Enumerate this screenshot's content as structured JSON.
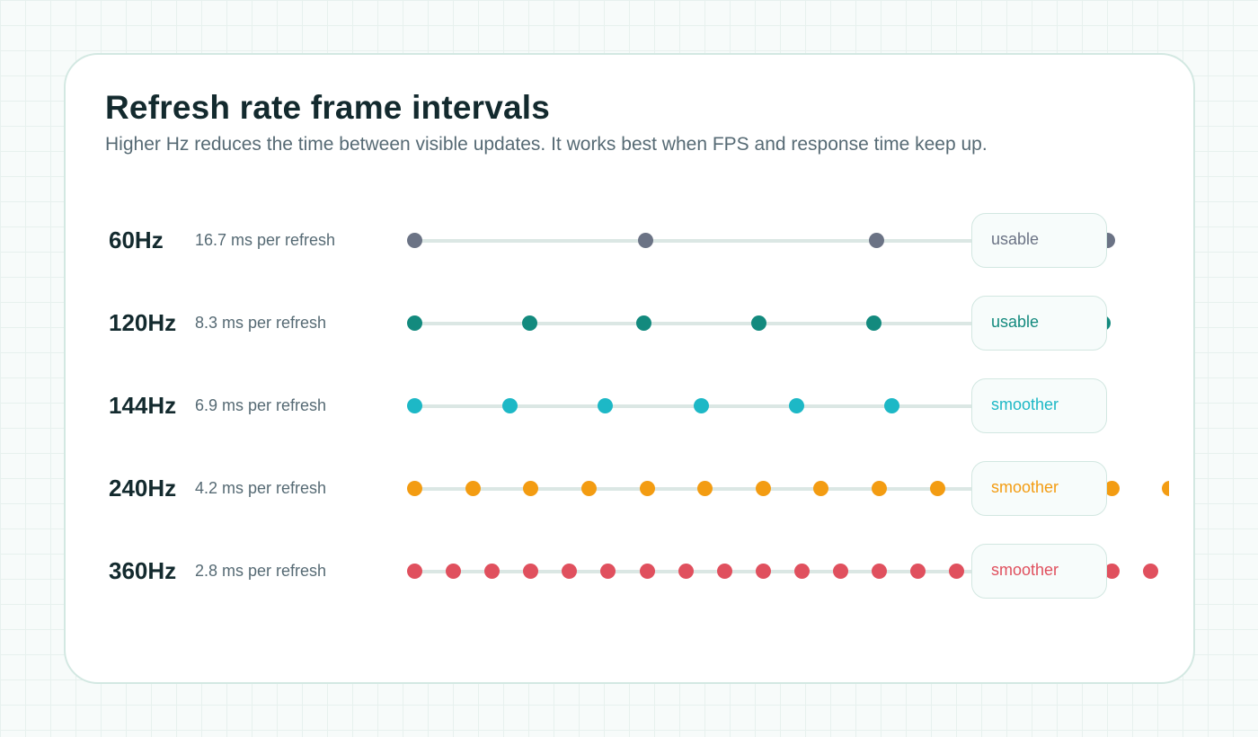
{
  "title": "Refresh rate frame intervals",
  "subtitle": "Higher Hz reduces the time between visible updates. It works best when FPS and response time keep up.",
  "rows": [
    {
      "hz_label": "60Hz",
      "interval_label": "16.7 ms per refresh",
      "status": "usable",
      "color": "#6b7385",
      "interval_ms": 16.7
    },
    {
      "hz_label": "120Hz",
      "interval_label": "8.3 ms per refresh",
      "status": "usable",
      "color": "#138a7e",
      "interval_ms": 8.3
    },
    {
      "hz_label": "144Hz",
      "interval_label": "6.9 ms per refresh",
      "status": "smoother",
      "color": "#1db8c6",
      "interval_ms": 6.9
    },
    {
      "hz_label": "240Hz",
      "interval_label": "4.2 ms per refresh",
      "status": "smoother",
      "color": "#f39c12",
      "interval_ms": 4.2
    },
    {
      "hz_label": "360Hz",
      "interval_label": "2.8 ms per refresh",
      "status": "smoother",
      "color": "#e0505e",
      "interval_ms": 2.8
    }
  ]
}
